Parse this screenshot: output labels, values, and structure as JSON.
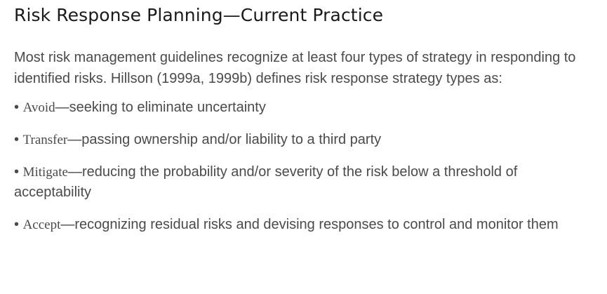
{
  "heading": "Risk Response Planning—Current Practice",
  "intro": "Most risk management guidelines recognize at least four types of strategy in responding to identified risks. Hillson (1999a, 1999b) defines risk response strategy types as:",
  "strategies": [
    {
      "bullet": "• ",
      "term": "Avoid",
      "description": "—seeking to eliminate uncertainty"
    },
    {
      "bullet": "• ",
      "term": "Transfer",
      "description": "—passing ownership and/or liability to a third party"
    },
    {
      "bullet": "• ",
      "term": "Mitigate",
      "description": "—reducing the probability and/or severity of the risk below a threshold of acceptability"
    },
    {
      "bullet": "• ",
      "term": "Accept",
      "description": "—recognizing residual risks and devising responses to control and monitor them"
    }
  ]
}
